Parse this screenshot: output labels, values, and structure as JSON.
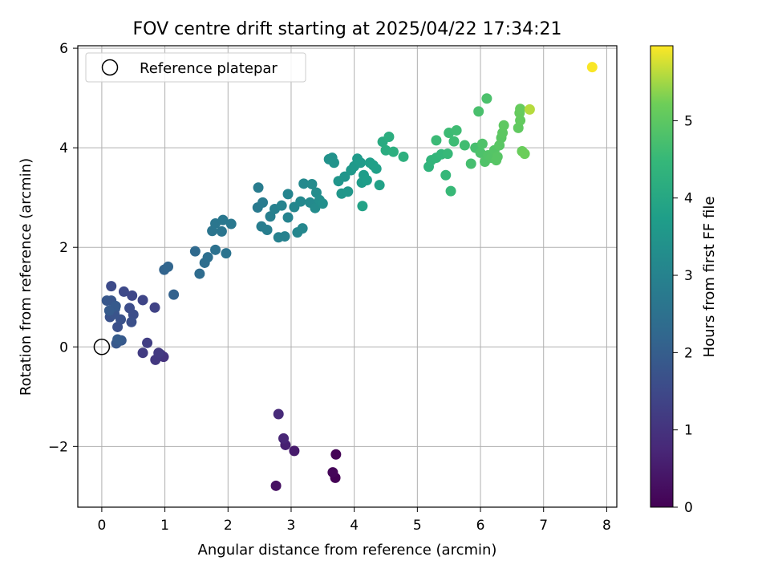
{
  "chart_data": {
    "type": "scatter",
    "title": "FOV centre drift starting at 2025/04/22 17:34:21",
    "xlabel": "Angular distance from reference (arcmin)",
    "ylabel": "Rotation from reference (arcmin)",
    "xlim": [
      -0.38,
      8.16
    ],
    "ylim": [
      -3.22,
      6.05
    ],
    "xticks": [
      0,
      1,
      2,
      3,
      4,
      5,
      6,
      7,
      8
    ],
    "yticks": [
      -2,
      0,
      2,
      4,
      6
    ],
    "grid": true,
    "colormap": "viridis",
    "colorbar": {
      "label": "Hours from first FF file",
      "range": [
        0,
        5.97
      ],
      "ticks": [
        0,
        1,
        2,
        3,
        4,
        5
      ]
    },
    "legend": {
      "placement": "top-left",
      "entries": [
        {
          "label": "Reference platepar",
          "marker": "open-circle",
          "x": 0,
          "y": 0
        }
      ]
    },
    "series": [
      {
        "colorscale_field": "hours",
        "points": [
          {
            "x": 3.7,
            "y": -2.63,
            "h": 0.02
          },
          {
            "x": 3.71,
            "y": -2.16,
            "h": 0.05
          },
          {
            "x": 3.66,
            "y": -2.52,
            "h": 0.1
          },
          {
            "x": 2.76,
            "y": -2.79,
            "h": 0.3
          },
          {
            "x": 3.05,
            "y": -2.09,
            "h": 0.5
          },
          {
            "x": 2.91,
            "y": -1.97,
            "h": 0.6
          },
          {
            "x": 2.88,
            "y": -1.84,
            "h": 0.7
          },
          {
            "x": 2.8,
            "y": -1.35,
            "h": 0.8
          },
          {
            "x": 0.98,
            "y": -0.2,
            "h": 1.0
          },
          {
            "x": 0.93,
            "y": -0.15,
            "h": 1.05
          },
          {
            "x": 0.85,
            "y": -0.26,
            "h": 1.1
          },
          {
            "x": 0.9,
            "y": -0.12,
            "h": 1.15
          },
          {
            "x": 0.65,
            "y": -0.12,
            "h": 1.2
          },
          {
            "x": 0.72,
            "y": 0.08,
            "h": 1.25
          },
          {
            "x": 0.84,
            "y": 0.79,
            "h": 1.35
          },
          {
            "x": 0.65,
            "y": 0.94,
            "h": 1.4
          },
          {
            "x": 0.48,
            "y": 1.03,
            "h": 1.45
          },
          {
            "x": 0.35,
            "y": 1.11,
            "h": 1.5
          },
          {
            "x": 0.15,
            "y": 1.22,
            "h": 1.55
          },
          {
            "x": 0.44,
            "y": 0.78,
            "h": 1.6
          },
          {
            "x": 0.5,
            "y": 0.65,
            "h": 1.62
          },
          {
            "x": 0.47,
            "y": 0.5,
            "h": 1.65
          },
          {
            "x": 0.25,
            "y": 0.4,
            "h": 1.67
          },
          {
            "x": 0.3,
            "y": 0.55,
            "h": 1.7
          },
          {
            "x": 0.13,
            "y": 0.6,
            "h": 1.72
          },
          {
            "x": 0.2,
            "y": 0.66,
            "h": 1.75
          },
          {
            "x": 0.21,
            "y": 0.77,
            "h": 1.78
          },
          {
            "x": 0.15,
            "y": 0.93,
            "h": 1.8
          },
          {
            "x": 0.08,
            "y": 0.93,
            "h": 1.82
          },
          {
            "x": 0.23,
            "y": 0.07,
            "h": 1.85
          },
          {
            "x": 0.31,
            "y": 0.13,
            "h": 1.88
          },
          {
            "x": 0.22,
            "y": 0.82,
            "h": 1.9
          },
          {
            "x": 0.12,
            "y": 0.73,
            "h": 1.92
          },
          {
            "x": 0.25,
            "y": 0.15,
            "h": 1.95
          },
          {
            "x": 1.14,
            "y": 1.05,
            "h": 2.1
          },
          {
            "x": 0.99,
            "y": 1.55,
            "h": 2.15
          },
          {
            "x": 1.05,
            "y": 1.61,
            "h": 2.2
          },
          {
            "x": 1.48,
            "y": 1.92,
            "h": 2.3
          },
          {
            "x": 1.55,
            "y": 1.47,
            "h": 2.35
          },
          {
            "x": 1.63,
            "y": 1.69,
            "h": 2.4
          },
          {
            "x": 1.68,
            "y": 1.8,
            "h": 2.45
          },
          {
            "x": 1.8,
            "y": 1.95,
            "h": 2.5
          },
          {
            "x": 1.97,
            "y": 1.88,
            "h": 2.55
          },
          {
            "x": 1.75,
            "y": 2.33,
            "h": 2.6
          },
          {
            "x": 1.9,
            "y": 2.32,
            "h": 2.62
          },
          {
            "x": 1.8,
            "y": 2.48,
            "h": 2.65
          },
          {
            "x": 1.92,
            "y": 2.55,
            "h": 2.68
          },
          {
            "x": 2.05,
            "y": 2.47,
            "h": 2.7
          },
          {
            "x": 2.47,
            "y": 2.8,
            "h": 2.75
          },
          {
            "x": 2.55,
            "y": 2.9,
            "h": 2.78
          },
          {
            "x": 2.48,
            "y": 3.2,
            "h": 2.8
          },
          {
            "x": 2.53,
            "y": 2.42,
            "h": 2.85
          },
          {
            "x": 2.62,
            "y": 2.35,
            "h": 2.88
          },
          {
            "x": 2.67,
            "y": 2.62,
            "h": 2.9
          },
          {
            "x": 2.74,
            "y": 2.77,
            "h": 2.92
          },
          {
            "x": 2.8,
            "y": 2.2,
            "h": 2.95
          },
          {
            "x": 2.9,
            "y": 2.22,
            "h": 2.97
          },
          {
            "x": 2.85,
            "y": 2.84,
            "h": 3.0
          },
          {
            "x": 2.95,
            "y": 2.6,
            "h": 3.02
          },
          {
            "x": 2.95,
            "y": 3.07,
            "h": 3.05
          },
          {
            "x": 3.05,
            "y": 2.81,
            "h": 3.08
          },
          {
            "x": 3.1,
            "y": 2.3,
            "h": 3.1
          },
          {
            "x": 3.18,
            "y": 2.38,
            "h": 3.12
          },
          {
            "x": 3.15,
            "y": 2.92,
            "h": 3.15
          },
          {
            "x": 3.2,
            "y": 3.28,
            "h": 3.18
          },
          {
            "x": 3.3,
            "y": 2.9,
            "h": 3.2
          },
          {
            "x": 3.33,
            "y": 3.27,
            "h": 3.22
          },
          {
            "x": 3.38,
            "y": 2.79,
            "h": 3.25
          },
          {
            "x": 3.4,
            "y": 3.1,
            "h": 3.28
          },
          {
            "x": 3.45,
            "y": 2.95,
            "h": 3.3
          },
          {
            "x": 3.5,
            "y": 2.88,
            "h": 3.32
          },
          {
            "x": 3.6,
            "y": 3.77,
            "h": 3.4
          },
          {
            "x": 3.65,
            "y": 3.8,
            "h": 3.42
          },
          {
            "x": 3.68,
            "y": 3.7,
            "h": 3.45
          },
          {
            "x": 3.75,
            "y": 3.33,
            "h": 3.48
          },
          {
            "x": 3.85,
            "y": 3.42,
            "h": 3.5
          },
          {
            "x": 3.8,
            "y": 3.08,
            "h": 3.52
          },
          {
            "x": 3.9,
            "y": 3.12,
            "h": 3.55
          },
          {
            "x": 3.95,
            "y": 3.55,
            "h": 3.58
          },
          {
            "x": 4.0,
            "y": 3.63,
            "h": 3.6
          },
          {
            "x": 4.05,
            "y": 3.78,
            "h": 3.62
          },
          {
            "x": 4.1,
            "y": 3.7,
            "h": 3.65
          },
          {
            "x": 4.12,
            "y": 3.3,
            "h": 3.68
          },
          {
            "x": 4.15,
            "y": 3.45,
            "h": 3.7
          },
          {
            "x": 4.2,
            "y": 3.35,
            "h": 3.72
          },
          {
            "x": 4.25,
            "y": 3.7,
            "h": 3.75
          },
          {
            "x": 4.3,
            "y": 3.65,
            "h": 3.78
          },
          {
            "x": 4.35,
            "y": 3.58,
            "h": 3.8
          },
          {
            "x": 4.4,
            "y": 3.25,
            "h": 3.82
          },
          {
            "x": 4.13,
            "y": 2.83,
            "h": 3.85
          },
          {
            "x": 4.45,
            "y": 4.12,
            "h": 4.1
          },
          {
            "x": 4.5,
            "y": 3.95,
            "h": 4.15
          },
          {
            "x": 4.55,
            "y": 4.22,
            "h": 4.18
          },
          {
            "x": 4.62,
            "y": 3.92,
            "h": 4.2
          },
          {
            "x": 4.78,
            "y": 3.82,
            "h": 4.25
          },
          {
            "x": 5.18,
            "y": 3.62,
            "h": 4.35
          },
          {
            "x": 5.22,
            "y": 3.75,
            "h": 4.4
          },
          {
            "x": 5.3,
            "y": 3.8,
            "h": 4.42
          },
          {
            "x": 5.38,
            "y": 3.87,
            "h": 4.45
          },
          {
            "x": 5.45,
            "y": 3.45,
            "h": 4.48
          },
          {
            "x": 5.48,
            "y": 3.88,
            "h": 4.5
          },
          {
            "x": 5.53,
            "y": 3.13,
            "h": 4.52
          },
          {
            "x": 5.3,
            "y": 4.15,
            "h": 4.55
          },
          {
            "x": 5.5,
            "y": 4.3,
            "h": 4.58
          },
          {
            "x": 5.58,
            "y": 4.13,
            "h": 4.6
          },
          {
            "x": 5.62,
            "y": 4.35,
            "h": 4.62
          },
          {
            "x": 5.75,
            "y": 4.05,
            "h": 4.65
          },
          {
            "x": 5.85,
            "y": 3.68,
            "h": 4.7
          },
          {
            "x": 5.92,
            "y": 4.0,
            "h": 4.72
          },
          {
            "x": 5.97,
            "y": 4.73,
            "h": 4.75
          },
          {
            "x": 6.1,
            "y": 4.99,
            "h": 4.78
          },
          {
            "x": 6.0,
            "y": 3.9,
            "h": 4.8
          },
          {
            "x": 6.03,
            "y": 4.08,
            "h": 4.82
          },
          {
            "x": 6.07,
            "y": 3.72,
            "h": 4.84
          },
          {
            "x": 6.12,
            "y": 3.85,
            "h": 4.86
          },
          {
            "x": 6.17,
            "y": 3.8,
            "h": 4.88
          },
          {
            "x": 6.22,
            "y": 3.95,
            "h": 4.9
          },
          {
            "x": 6.25,
            "y": 3.75,
            "h": 4.92
          },
          {
            "x": 6.27,
            "y": 3.82,
            "h": 4.94
          },
          {
            "x": 6.3,
            "y": 4.05,
            "h": 4.96
          },
          {
            "x": 6.33,
            "y": 4.2,
            "h": 4.98
          },
          {
            "x": 6.35,
            "y": 4.3,
            "h": 5.0
          },
          {
            "x": 6.37,
            "y": 4.45,
            "h": 5.02
          },
          {
            "x": 6.6,
            "y": 4.4,
            "h": 5.05
          },
          {
            "x": 6.63,
            "y": 4.55,
            "h": 5.08
          },
          {
            "x": 6.62,
            "y": 4.7,
            "h": 5.1
          },
          {
            "x": 6.63,
            "y": 4.78,
            "h": 5.12
          },
          {
            "x": 6.66,
            "y": 3.93,
            "h": 5.15
          },
          {
            "x": 6.7,
            "y": 3.88,
            "h": 5.18
          },
          {
            "x": 6.78,
            "y": 4.77,
            "h": 5.6
          },
          {
            "x": 7.77,
            "y": 5.62,
            "h": 5.95
          }
        ]
      }
    ]
  }
}
